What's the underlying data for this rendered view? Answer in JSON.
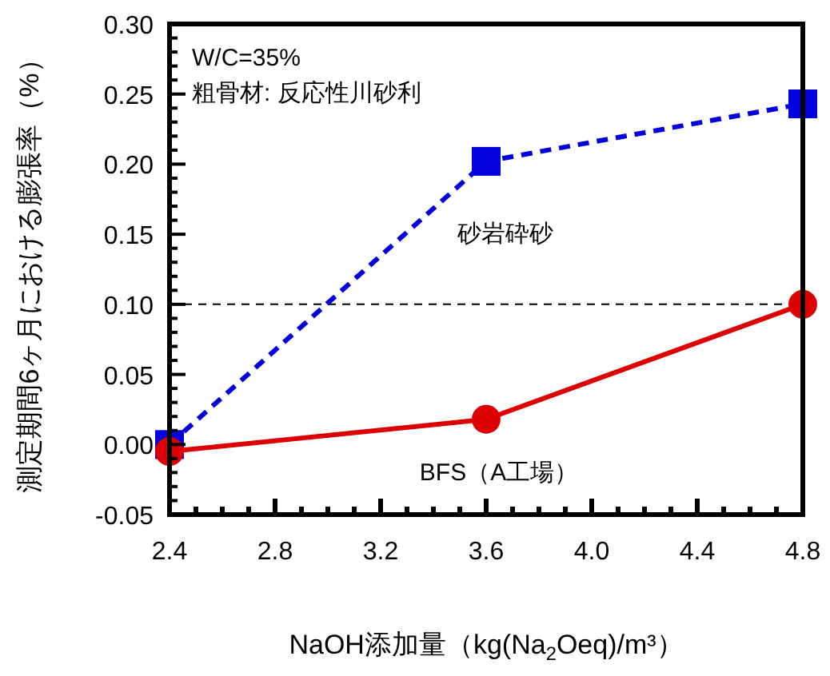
{
  "chart_data": {
    "type": "line",
    "xlabel": "NaOH添加量（kg(Na$_{2}$Oeq)/m³）",
    "ylabel": "測定期間6ヶ月における膨張率（%）",
    "x": [
      2.4,
      3.6,
      4.8
    ],
    "series": [
      {
        "name": "砂岩砕砂",
        "color": "#0000dd",
        "values": [
          0.0,
          0.202,
          0.243
        ],
        "marker": "square",
        "line_style": "dashed"
      },
      {
        "name": "BFS（A工場）",
        "color": "#dd0000",
        "values": [
          -0.005,
          0.018,
          0.1
        ],
        "marker": "circle",
        "line_style": "solid"
      }
    ],
    "xlim": [
      2.4,
      4.8
    ],
    "xticks": [
      2.4,
      {
        "value": 2.5,
        "label": null
      },
      {
        "value": 2.6,
        "label": null
      },
      {
        "value": 2.7,
        "label": null
      },
      2.8,
      {
        "value": 2.9,
        "label": null
      },
      {
        "value": 3.0,
        "label": null
      },
      {
        "value": 3.1,
        "label": null
      },
      3.2,
      {
        "value": 3.3,
        "label": null
      },
      {
        "value": 3.4,
        "label": null
      },
      {
        "value": 3.5,
        "label": null
      },
      3.6,
      {
        "value": 3.7,
        "label": null
      },
      {
        "value": 3.8,
        "label": null
      },
      {
        "value": 3.9,
        "label": null
      },
      {
        "value": 4.0,
        "label": "4.0"
      },
      {
        "value": 4.1,
        "label": null
      },
      {
        "value": 4.2,
        "label": null
      },
      {
        "value": 4.3,
        "label": null
      },
      4.4,
      {
        "value": 4.5,
        "label": null
      },
      {
        "value": 4.6,
        "label": null
      },
      {
        "value": 4.7,
        "label": null
      },
      4.8
    ],
    "ylim": [
      -0.05,
      0.3
    ],
    "yticks": [
      {
        "value": -0.05,
        "label": "-0.05"
      },
      {
        "value": -0.04,
        "label": null
      },
      {
        "value": -0.03,
        "label": null
      },
      {
        "value": -0.02,
        "label": null
      },
      {
        "value": -0.01,
        "label": null
      },
      {
        "value": 0,
        "label": "0.00"
      },
      {
        "value": 0.01,
        "label": null
      },
      {
        "value": 0.02,
        "label": null
      },
      {
        "value": 0.03,
        "label": null
      },
      {
        "value": 0.04,
        "label": null
      },
      {
        "value": 0.05,
        "label": "0.05"
      },
      {
        "value": 0.06,
        "label": null
      },
      {
        "value": 0.07,
        "label": null
      },
      {
        "value": 0.08,
        "label": null
      },
      {
        "value": 0.09,
        "label": null
      },
      {
        "value": 0.1,
        "label": "0.10"
      },
      {
        "value": 0.11,
        "label": null
      },
      {
        "value": 0.12,
        "label": null
      },
      {
        "value": 0.13,
        "label": null
      },
      {
        "value": 0.14,
        "label": null
      },
      {
        "value": 0.15,
        "label": "0.15"
      },
      {
        "value": 0.16,
        "label": null
      },
      {
        "value": 0.17,
        "label": null
      },
      {
        "value": 0.18,
        "label": null
      },
      {
        "value": 0.19,
        "label": null
      },
      {
        "value": 0.2,
        "label": "0.20"
      },
      {
        "value": 0.21,
        "label": null
      },
      {
        "value": 0.22,
        "label": null
      },
      {
        "value": 0.23,
        "label": null
      },
      {
        "value": 0.24,
        "label": null
      },
      {
        "value": 0.25,
        "label": "0.25"
      },
      {
        "value": 0.26,
        "label": null
      },
      {
        "value": 0.27,
        "label": null
      },
      {
        "value": 0.28,
        "label": null
      },
      {
        "value": 0.29,
        "label": null
      },
      {
        "value": 0.3,
        "label": "0.30"
      }
    ],
    "ref_lines": [
      {
        "axis": "y",
        "value": 0.1,
        "color": "#000000",
        "line_style": "dashed"
      }
    ],
    "annotations": [
      "W/C=35%",
      "粗骨材: 反応性川砂利"
    ],
    "grid": false
  }
}
